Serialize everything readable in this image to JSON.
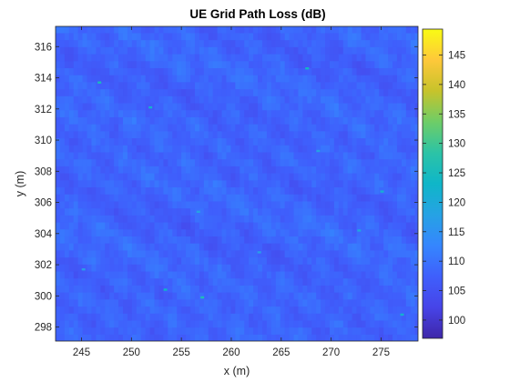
{
  "chart_data": {
    "type": "heatmap",
    "title": "UE Grid Path Loss (dB)",
    "xlabel": "x (m)",
    "ylabel": "y (m)",
    "xlim": [
      242.4,
      278.7
    ],
    "ylim": [
      297.1,
      317.3
    ],
    "xticks": [
      245,
      250,
      255,
      260,
      265,
      270,
      275
    ],
    "yticks": [
      298,
      300,
      302,
      304,
      306,
      308,
      310,
      312,
      314,
      316
    ],
    "colorbar": {
      "clim": [
        96.9,
        149.4
      ],
      "ticks": [
        100,
        105,
        110,
        115,
        120,
        125,
        130,
        135,
        140,
        145
      ],
      "colormap": [
        "#3e26a8",
        "#4744e8",
        "#3f5ffc",
        "#3586fe",
        "#26a2e4",
        "#0fb6c8",
        "#2cc3a6",
        "#6ecd67",
        "#c7c32b",
        "#fec83a",
        "#f9fb14"
      ]
    },
    "field": {
      "base_db": 108,
      "ripple_db": 4.5,
      "peak_samples": [
        {
          "x": 246.8,
          "y": 313.7,
          "db": 125
        },
        {
          "x": 267.6,
          "y": 314.6,
          "db": 124
        },
        {
          "x": 251.9,
          "y": 312.1,
          "db": 122
        },
        {
          "x": 275.1,
          "y": 306.7,
          "db": 121
        },
        {
          "x": 256.7,
          "y": 305.4,
          "db": 118
        },
        {
          "x": 272.8,
          "y": 304.2,
          "db": 119
        },
        {
          "x": 245.2,
          "y": 301.7,
          "db": 117
        },
        {
          "x": 253.4,
          "y": 300.4,
          "db": 123
        },
        {
          "x": 257.1,
          "y": 299.9,
          "db": 126
        },
        {
          "x": 268.7,
          "y": 309.3,
          "db": 118
        },
        {
          "x": 262.8,
          "y": 302.8,
          "db": 117
        },
        {
          "x": 277.1,
          "y": 298.8,
          "db": 122
        }
      ]
    }
  }
}
